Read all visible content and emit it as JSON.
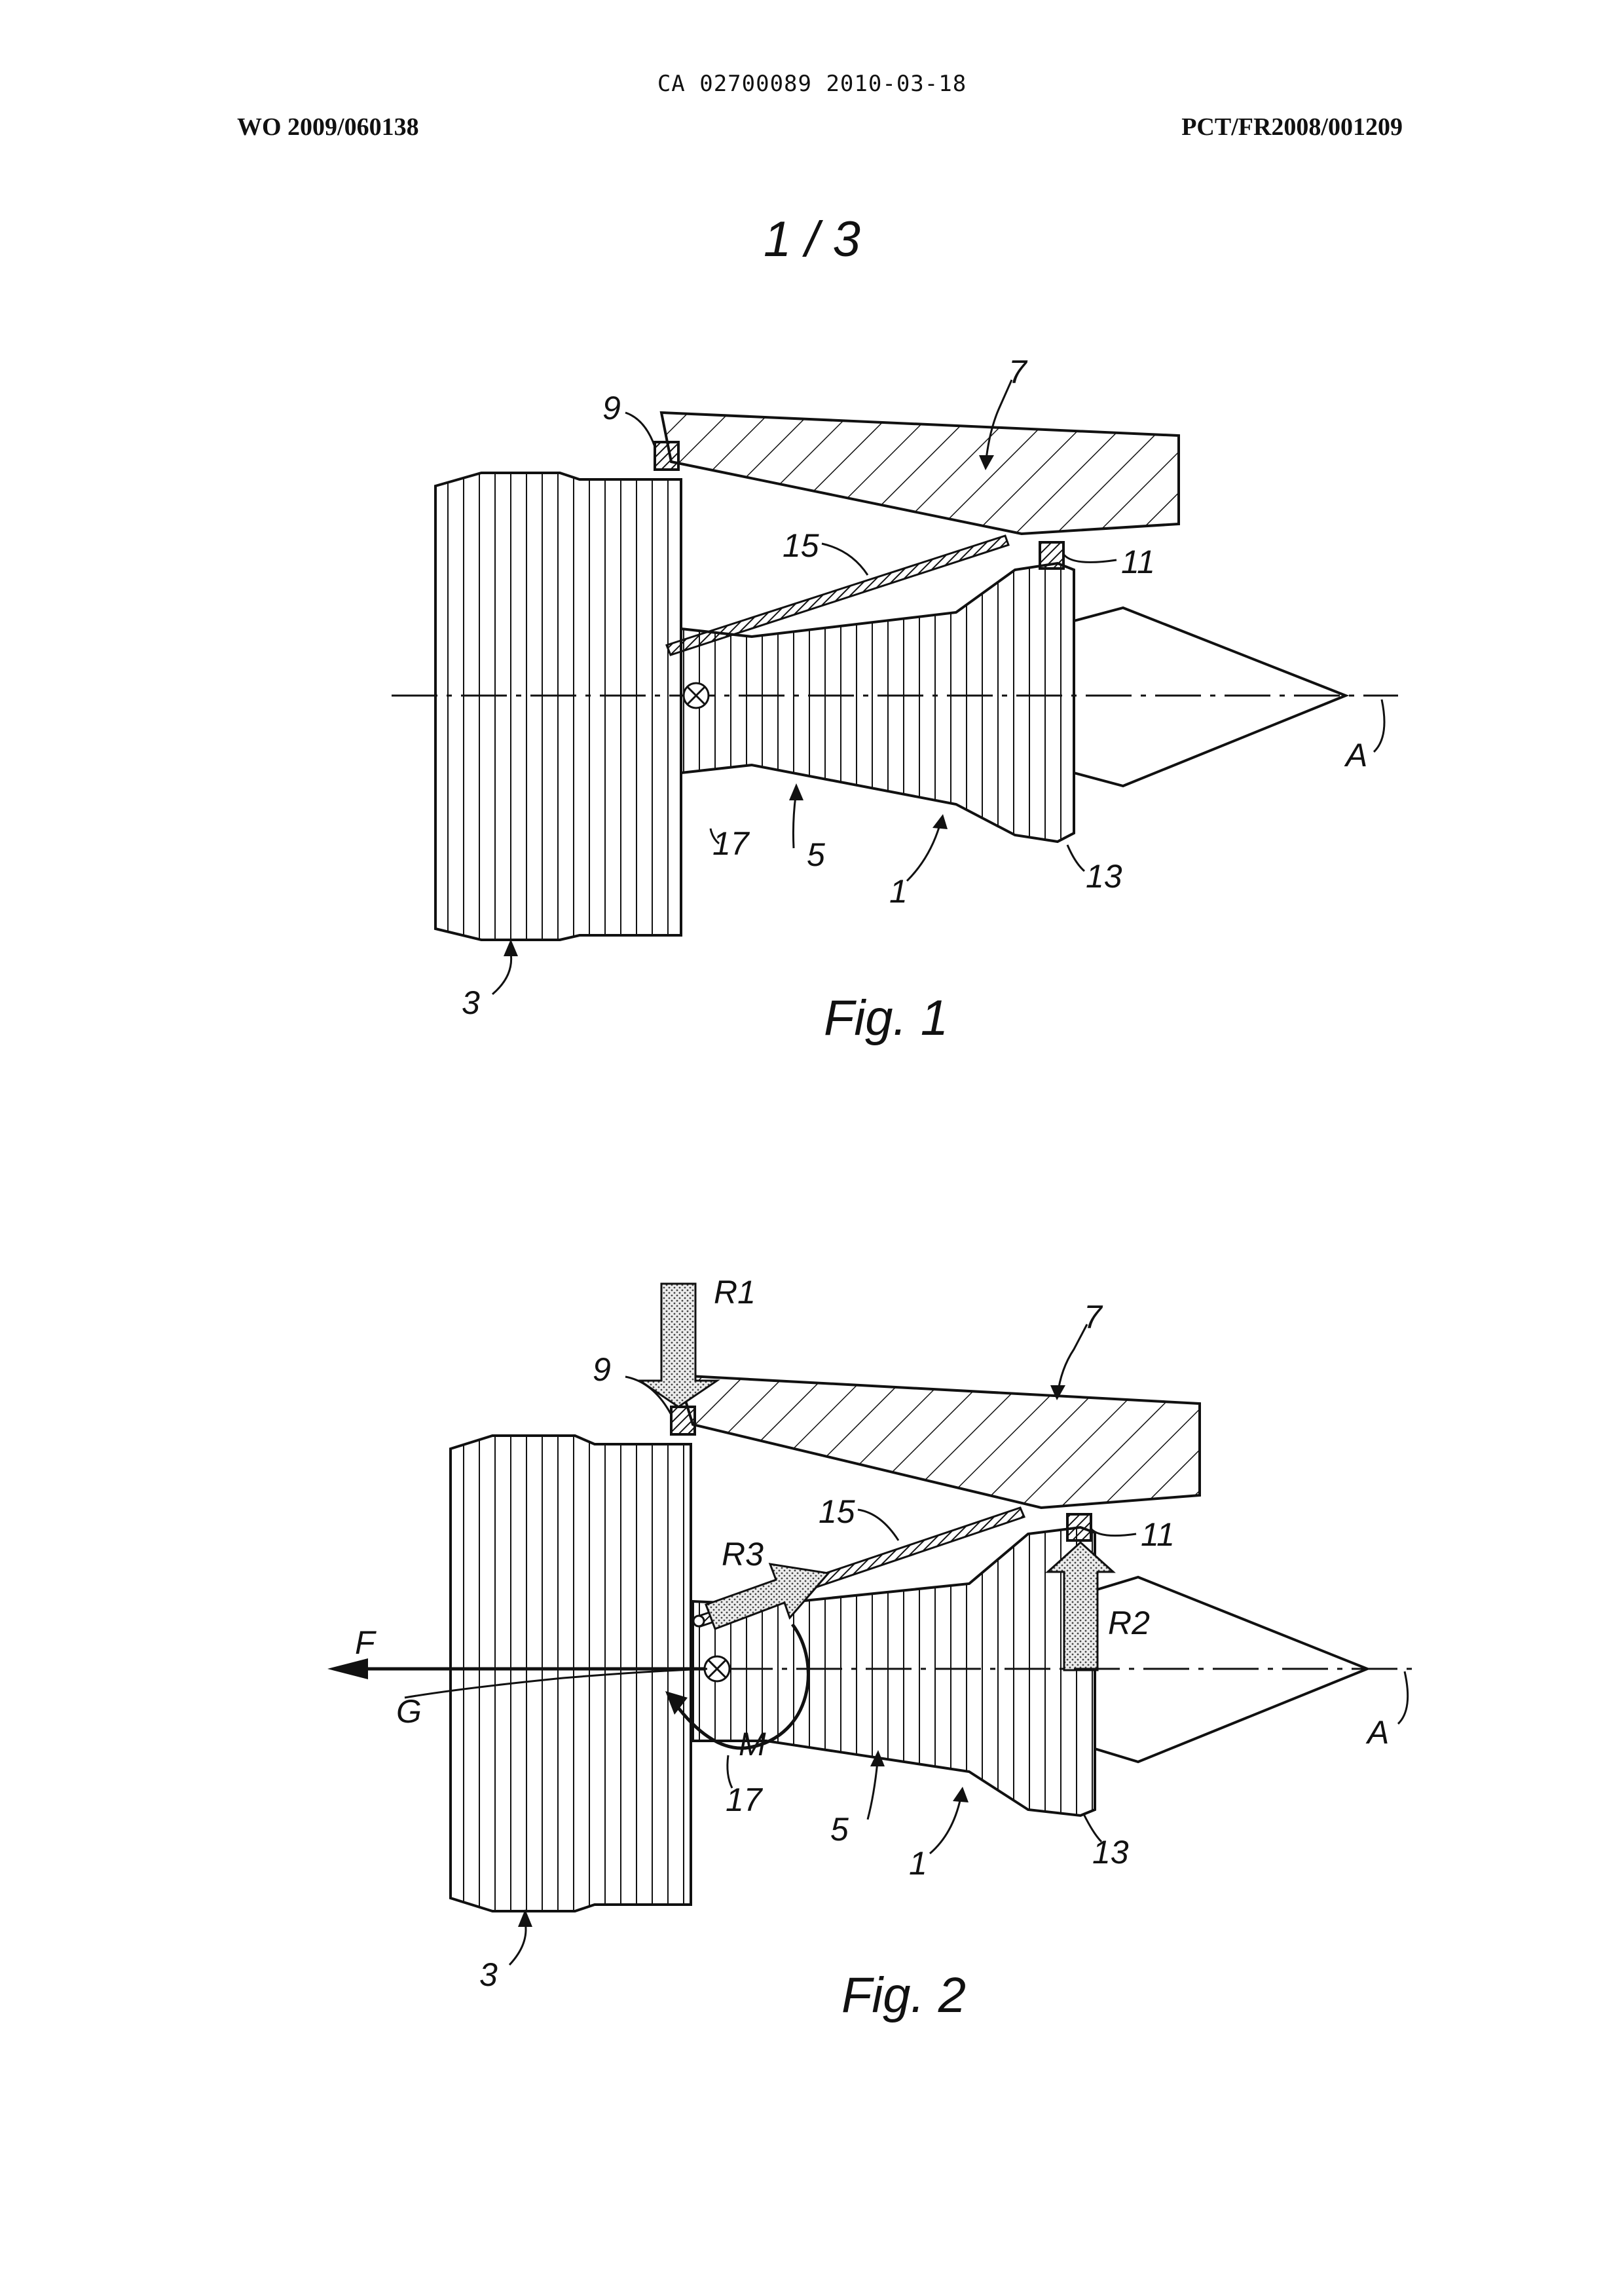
{
  "header": {
    "center": "CA 02700089 2010-03-18",
    "left": "WO 2009/060138",
    "right": "PCT/FR2008/001209"
  },
  "sheet_number": "1 / 3",
  "figure1": {
    "caption": "Fig. 1",
    "labels": {
      "n1": "1",
      "n3": "3",
      "n5": "5",
      "n7": "7",
      "n9": "9",
      "n11": "11",
      "n13": "13",
      "n15": "15",
      "n17": "17",
      "axis": "A"
    }
  },
  "figure2": {
    "caption": "Fig. 2",
    "labels": {
      "n1": "1",
      "n3": "3",
      "n5": "5",
      "n7": "7",
      "n9": "9",
      "n11": "11",
      "n13": "13",
      "n15": "15",
      "n17": "17",
      "axis": "A",
      "r1": "R1",
      "r2": "R2",
      "r3": "R3",
      "f": "F",
      "g": "G",
      "m": "M"
    }
  },
  "colors": {
    "ink": "#111111",
    "paper": "#ffffff",
    "dotted_arrow_fill": "#e6e6e6"
  }
}
